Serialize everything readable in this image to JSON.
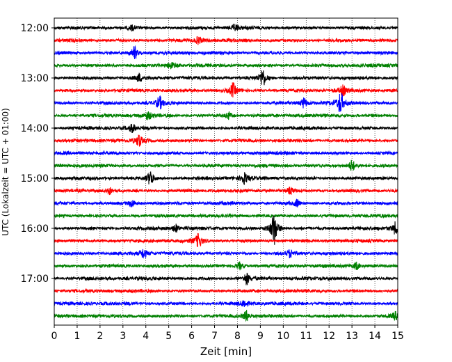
{
  "chart_data": {
    "type": "line",
    "title": "",
    "xlabel": "Zeit  [min]",
    "ylabel": "UTC (Lokalzeit = UTC + 01:00)",
    "xlim": [
      0,
      15
    ],
    "x_ticks": [
      0,
      1,
      2,
      3,
      4,
      5,
      6,
      7,
      8,
      9,
      10,
      11,
      12,
      13,
      14,
      15
    ],
    "y_tick_labels": [
      "12:00",
      "13:00",
      "14:00",
      "15:00",
      "16:00",
      "17:00"
    ],
    "grid": "vertical dotted lines at each minute",
    "trace_interval_min": 15,
    "trace_start": "12:00",
    "trace_count": 24,
    "trace_colors": [
      "#000000",
      "#ff0000",
      "#0000ff",
      "#008000"
    ],
    "events": [
      {
        "trace": 0,
        "minute": 3.4,
        "amp": 0.2
      },
      {
        "trace": 0,
        "minute": 7.9,
        "amp": 0.25
      },
      {
        "trace": 1,
        "minute": 6.3,
        "amp": 0.3
      },
      {
        "trace": 2,
        "minute": 3.5,
        "amp": 0.55
      },
      {
        "trace": 3,
        "minute": 5.1,
        "amp": 0.3
      },
      {
        "trace": 4,
        "minute": 9.1,
        "amp": 0.8
      },
      {
        "trace": 4,
        "minute": 3.7,
        "amp": 0.3
      },
      {
        "trace": 5,
        "minute": 7.8,
        "amp": 0.6
      },
      {
        "trace": 5,
        "minute": 12.6,
        "amp": 0.4
      },
      {
        "trace": 6,
        "minute": 12.5,
        "amp": 0.9
      },
      {
        "trace": 6,
        "minute": 4.6,
        "amp": 0.5
      },
      {
        "trace": 6,
        "minute": 10.9,
        "amp": 0.4
      },
      {
        "trace": 7,
        "minute": 4.1,
        "amp": 0.3
      },
      {
        "trace": 7,
        "minute": 7.6,
        "amp": 0.3
      },
      {
        "trace": 8,
        "minute": 3.4,
        "amp": 0.3
      },
      {
        "trace": 9,
        "minute": 3.7,
        "amp": 0.5
      },
      {
        "trace": 11,
        "minute": 13.0,
        "amp": 0.5
      },
      {
        "trace": 12,
        "minute": 4.2,
        "amp": 0.6
      },
      {
        "trace": 12,
        "minute": 8.3,
        "amp": 0.45
      },
      {
        "trace": 13,
        "minute": 2.4,
        "amp": 0.3
      },
      {
        "trace": 13,
        "minute": 10.3,
        "amp": 0.3
      },
      {
        "trace": 14,
        "minute": 3.4,
        "amp": 0.3
      },
      {
        "trace": 14,
        "minute": 10.6,
        "amp": 0.3
      },
      {
        "trace": 16,
        "minute": 9.6,
        "amp": 1.4
      },
      {
        "trace": 16,
        "minute": 14.9,
        "amp": 0.5
      },
      {
        "trace": 16,
        "minute": 5.3,
        "amp": 0.3
      },
      {
        "trace": 17,
        "minute": 6.3,
        "amp": 0.6
      },
      {
        "trace": 18,
        "minute": 3.9,
        "amp": 0.4
      },
      {
        "trace": 18,
        "minute": 10.3,
        "amp": 0.3
      },
      {
        "trace": 19,
        "minute": 8.1,
        "amp": 0.3
      },
      {
        "trace": 19,
        "minute": 13.2,
        "amp": 0.3
      },
      {
        "trace": 20,
        "minute": 8.4,
        "amp": 0.5
      },
      {
        "trace": 22,
        "minute": 8.3,
        "amp": 0.3
      },
      {
        "trace": 23,
        "minute": 8.4,
        "amp": 0.45
      },
      {
        "trace": 23,
        "minute": 14.9,
        "amp": 0.3
      }
    ]
  }
}
